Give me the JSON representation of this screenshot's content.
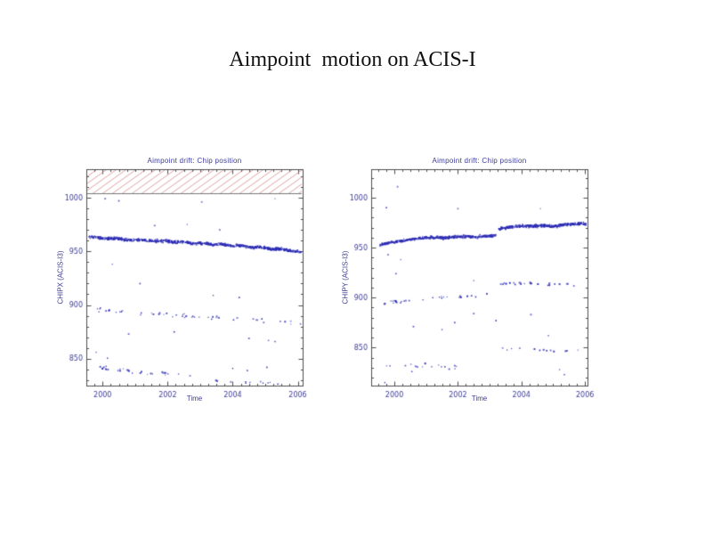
{
  "page": {
    "title": "Aimpoint  motion on ACIS-I",
    "background": "#ffffff",
    "title_color": "#111111"
  },
  "styles": {
    "plot_text_color": "#3b3b99",
    "frame_color": "#4d4d4d",
    "point_color": "#2b2bb4",
    "hatch_color": "#cc7a7a",
    "hatch_border_color": "#777777"
  },
  "chart_data": [
    {
      "id": "chipx",
      "type": "scatter",
      "title": "Aimpoint drift: Chip position",
      "xlabel": "Time",
      "ylabel": "CHIPX (ACIS-I3)",
      "x_range": [
        1999.5,
        2006.15
      ],
      "y_range": [
        825,
        1026.5
      ],
      "x_ticks": [
        2000,
        2002,
        2004,
        2006
      ],
      "y_ticks": [
        1000,
        950,
        900,
        850
      ],
      "x_minor_step": 0.25,
      "y_minor_step": 10,
      "hatched_region": {
        "y_from": 1004,
        "y_to": 1026.5
      },
      "bands": [
        {
          "name": "main-band",
          "seed": 11,
          "n": 700,
          "jitter": 1.25,
          "anchors": [
            [
              1999.58,
              963.8
            ],
            [
              1999.8,
              962.6
            ],
            [
              2000.1,
              961.9
            ],
            [
              2000.4,
              962.2
            ],
            [
              2000.7,
              960.9
            ],
            [
              2001.0,
              960.3
            ],
            [
              2001.3,
              960.7
            ],
            [
              2001.6,
              959.3
            ],
            [
              2001.9,
              959.8
            ],
            [
              2002.2,
              958.4
            ],
            [
              2002.5,
              958.9
            ],
            [
              2002.8,
              957.3
            ],
            [
              2003.1,
              957.7
            ],
            [
              2003.4,
              956.3
            ],
            [
              2003.7,
              956.7
            ],
            [
              2004.0,
              954.9
            ],
            [
              2004.3,
              955.3
            ],
            [
              2004.6,
              953.5
            ],
            [
              2004.9,
              953.9
            ],
            [
              2005.2,
              951.9
            ],
            [
              2005.5,
              952.3
            ],
            [
              2005.8,
              950.3
            ],
            [
              2006.1,
              949.6
            ]
          ]
        },
        {
          "name": "mid-band-900",
          "seed": 12,
          "n": 50,
          "jitter": 2.2,
          "anchors": [
            [
              1999.65,
              897
            ],
            [
              2000.3,
              895
            ],
            [
              2000.9,
              893.5
            ],
            [
              2001.6,
              892
            ],
            [
              2002.3,
              890.5
            ],
            [
              2003.0,
              889
            ],
            [
              2003.7,
              888
            ],
            [
              2004.4,
              886.5
            ],
            [
              2005.1,
              884.5
            ],
            [
              2005.8,
              883
            ],
            [
              2006.1,
              882.5
            ]
          ]
        },
        {
          "name": "low-band-840",
          "seed": 13,
          "n": 30,
          "jitter": 1.8,
          "anchors": [
            [
              1999.65,
              843.5
            ],
            [
              2000.2,
              840.5
            ],
            [
              2000.8,
              838.5
            ],
            [
              2001.5,
              837
            ],
            [
              2002.2,
              835.5
            ],
            [
              2002.7,
              834.5
            ]
          ]
        },
        {
          "name": "low-band-828",
          "seed": 14,
          "n": 11,
          "jitter": 1.2,
          "anchors": [
            [
              2003.3,
              830
            ],
            [
              2004.2,
              828.5
            ],
            [
              2005.2,
              827.5
            ],
            [
              2006.05,
              827
            ]
          ]
        }
      ],
      "outliers": [
        [
          2000.08,
          999
        ],
        [
          2000.5,
          997
        ],
        [
          2003.05,
          996
        ],
        [
          2005.3,
          999
        ],
        [
          2001.6,
          974
        ],
        [
          2002.6,
          975
        ],
        [
          2003.6,
          970
        ],
        [
          2000.3,
          938
        ],
        [
          2001.15,
          920
        ],
        [
          2003.4,
          909
        ],
        [
          2004.2,
          907
        ],
        [
          2000.8,
          873
        ],
        [
          2002.2,
          875
        ],
        [
          2004.5,
          869
        ],
        [
          2005.1,
          867
        ],
        [
          2005.3,
          866
        ],
        [
          1999.8,
          856
        ],
        [
          2000.15,
          850.5
        ],
        [
          2004.0,
          841
        ],
        [
          2004.45,
          839
        ],
        [
          2005.05,
          842
        ]
      ]
    },
    {
      "id": "chipy",
      "type": "scatter",
      "title": "Aimpoint drift: Chip position",
      "xlabel": "Time",
      "ylabel": "CHIPY (ACIS-I3)",
      "x_range": [
        1999.27,
        2006.08
      ],
      "y_range": [
        812,
        1028.5
      ],
      "x_ticks": [
        2000,
        2002,
        2004,
        2006
      ],
      "y_ticks": [
        1000,
        950,
        900,
        850
      ],
      "x_minor_step": 0.25,
      "y_minor_step": 10,
      "hatched_region": null,
      "bands": [
        {
          "name": "main-band-pre-jump",
          "seed": 21,
          "n": 390,
          "jitter": 1.25,
          "anchors": [
            [
              1999.55,
              952.6
            ],
            [
              1999.8,
              954.5
            ],
            [
              2000.1,
              956.4
            ],
            [
              2000.4,
              957.8
            ],
            [
              2000.7,
              959.0
            ],
            [
              2001.0,
              959.6
            ],
            [
              2001.3,
              960.4
            ],
            [
              2001.6,
              959.9
            ],
            [
              2001.9,
              960.8
            ],
            [
              2002.2,
              961.2
            ],
            [
              2002.5,
              960.6
            ],
            [
              2002.8,
              961.4
            ],
            [
              2003.05,
              961.7
            ],
            [
              2003.2,
              962.4
            ]
          ]
        },
        {
          "name": "main-band-post-jump",
          "seed": 22,
          "n": 310,
          "jitter": 1.25,
          "anchors": [
            [
              2003.28,
              968.6
            ],
            [
              2003.5,
              970.0
            ],
            [
              2003.8,
              971.0
            ],
            [
              2004.1,
              971.8
            ],
            [
              2004.4,
              971.2
            ],
            [
              2004.7,
              972.0
            ],
            [
              2005.0,
              971.5
            ],
            [
              2005.3,
              972.8
            ],
            [
              2005.6,
              973.4
            ],
            [
              2005.9,
              974.0
            ],
            [
              2006.05,
              973.8
            ]
          ]
        },
        {
          "name": "mid-band-pre-jump",
          "seed": 23,
          "n": 30,
          "jitter": 1.6,
          "anchors": [
            [
              1999.65,
              894.5
            ],
            [
              2000.2,
              896
            ],
            [
              2000.8,
              898
            ],
            [
              2001.4,
              900
            ],
            [
              2002.0,
              901
            ],
            [
              2002.6,
              901.5
            ],
            [
              2003.1,
              902.5
            ]
          ]
        },
        {
          "name": "mid-band-post-jump",
          "seed": 24,
          "n": 26,
          "jitter": 1.5,
          "anchors": [
            [
              2003.3,
              913.5
            ],
            [
              2003.8,
              914.5
            ],
            [
              2004.3,
              914
            ],
            [
              2004.8,
              913
            ],
            [
              2005.3,
              913.5
            ],
            [
              2005.7,
              912.5
            ]
          ]
        },
        {
          "name": "low-band-pre-jump",
          "seed": 25,
          "n": 16,
          "jitter": 2.0,
          "anchors": [
            [
              1999.6,
              833
            ],
            [
              2000.4,
              832
            ],
            [
              2001.2,
              831.5
            ],
            [
              2002.0,
              830.5
            ],
            [
              2002.6,
              830
            ]
          ]
        },
        {
          "name": "low-band-post-jump",
          "seed": 26,
          "n": 13,
          "jitter": 1.6,
          "anchors": [
            [
              2003.3,
              849.5
            ],
            [
              2004.0,
              848.5
            ],
            [
              2004.7,
              847.5
            ],
            [
              2005.4,
              846.5
            ],
            [
              2005.8,
              846
            ]
          ]
        }
      ],
      "outliers": [
        [
          2000.1,
          1011
        ],
        [
          1999.75,
          990
        ],
        [
          2002.0,
          989
        ],
        [
          2004.6,
          989
        ],
        [
          1999.8,
          943
        ],
        [
          2000.2,
          938
        ],
        [
          2000.05,
          924
        ],
        [
          2002.5,
          917
        ],
        [
          2000.6,
          871
        ],
        [
          2001.5,
          868
        ],
        [
          2001.9,
          875
        ],
        [
          2002.5,
          884
        ],
        [
          2003.2,
          877
        ],
        [
          2004.3,
          883
        ],
        [
          2004.85,
          862
        ],
        [
          2000.55,
          826
        ],
        [
          2005.2,
          828
        ],
        [
          2005.35,
          823
        ],
        [
          1999.7,
          815
        ]
      ]
    }
  ]
}
